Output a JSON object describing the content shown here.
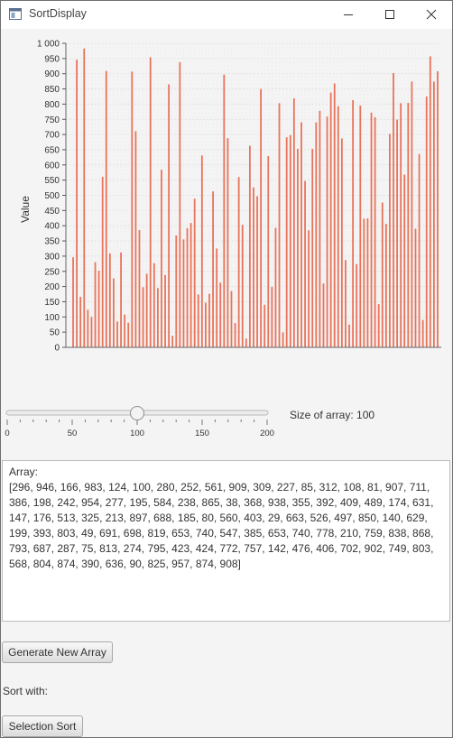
{
  "window": {
    "title": "SortDisplay",
    "controls": [
      "minimize-icon",
      "maximize-icon",
      "close-icon"
    ]
  },
  "chart_data": {
    "type": "bar",
    "title": "",
    "xlabel": "",
    "ylabel": "Value",
    "ylim": [
      0,
      1000
    ],
    "yticks": [
      "0",
      "50",
      "100",
      "150",
      "200",
      "250",
      "300",
      "350",
      "400",
      "450",
      "500",
      "550",
      "600",
      "650",
      "700",
      "750",
      "800",
      "850",
      "900",
      "950",
      "1 000"
    ],
    "grid": true,
    "bar_color": "#e8735a",
    "values": [
      296,
      946,
      166,
      983,
      124,
      100,
      280,
      252,
      561,
      909,
      309,
      227,
      85,
      312,
      108,
      81,
      907,
      711,
      386,
      198,
      242,
      954,
      277,
      195,
      584,
      238,
      865,
      38,
      368,
      938,
      355,
      392,
      409,
      489,
      174,
      631,
      147,
      176,
      513,
      325,
      213,
      897,
      688,
      185,
      80,
      560,
      403,
      29,
      663,
      526,
      497,
      850,
      140,
      629,
      199,
      393,
      803,
      49,
      691,
      698,
      819,
      653,
      740,
      547,
      385,
      653,
      740,
      778,
      210,
      759,
      838,
      868,
      793,
      687,
      287,
      75,
      813,
      274,
      795,
      423,
      424,
      772,
      757,
      142,
      476,
      406,
      702,
      902,
      749,
      803,
      568,
      804,
      874,
      390,
      636,
      90,
      825,
      957,
      874,
      908
    ]
  },
  "slider": {
    "value": 100,
    "min": 0,
    "max": 200,
    "ticks": [
      "0",
      "50",
      "100",
      "150",
      "200"
    ],
    "label": "Size of array: 100"
  },
  "array_text": {
    "heading": "Array:",
    "content": "[296, 946, 166, 983, 124, 100, 280, 252, 561, 909, 309, 227, 85, 312, 108, 81, 907, 711, 386, 198, 242, 954, 277, 195, 584, 238, 865, 38, 368, 938, 355, 392, 409, 489, 174, 631, 147, 176, 513, 325, 213, 897, 688, 185, 80, 560, 403, 29, 663, 526, 497, 850, 140, 629, 199, 393, 803, 49, 691, 698, 819, 653, 740, 547, 385, 653, 740, 778, 210, 759, 838, 868, 793, 687, 287, 75, 813, 274, 795, 423, 424, 772, 757, 142, 476, 406, 702, 902, 749, 803, 568, 804, 874, 390, 636, 90, 825, 957, 874, 908]"
  },
  "buttons": {
    "generate": "Generate New Array",
    "sort_with_label": "Sort with:",
    "selection_sort": "Selection Sort"
  }
}
